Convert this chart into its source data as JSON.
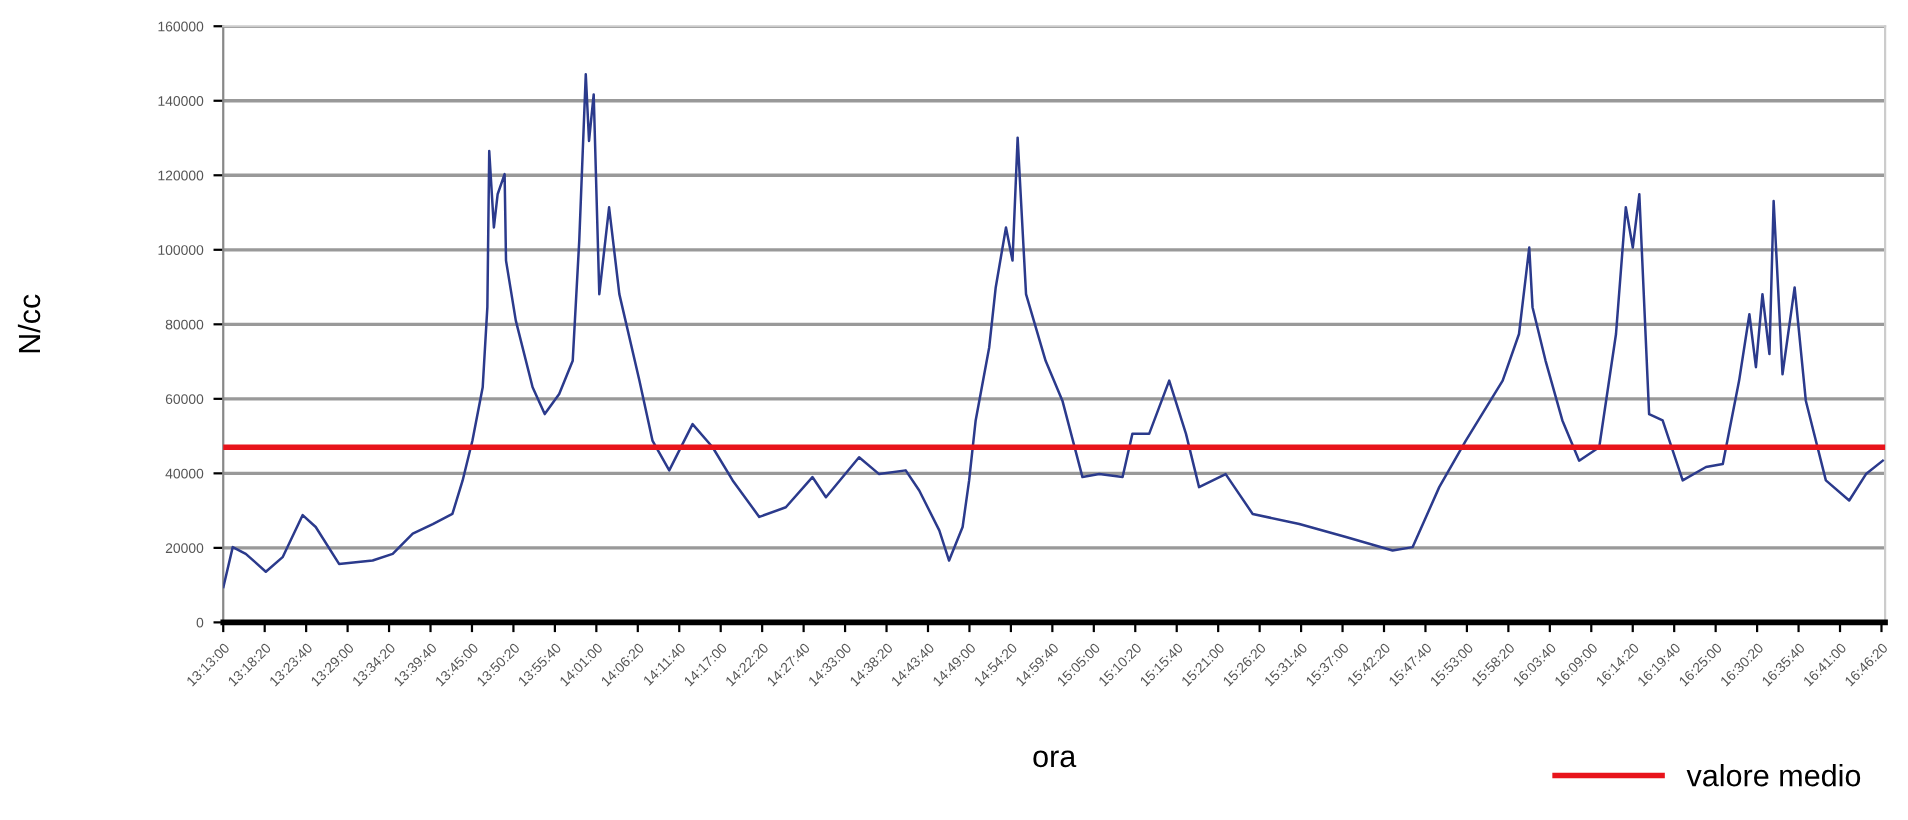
{
  "chart_data": {
    "type": "line",
    "xlabel": "ora",
    "ylabel": "N/cc",
    "x": [
      13.217,
      13.237,
      13.265,
      13.308,
      13.344,
      13.387,
      13.415,
      13.465,
      13.537,
      13.58,
      13.623,
      13.666,
      13.708,
      13.73,
      13.751,
      13.773,
      13.783,
      13.787,
      13.797,
      13.805,
      13.82,
      13.823,
      13.844,
      13.88,
      13.906,
      13.937,
      13.966,
      13.98,
      13.994,
      14.001,
      14.011,
      14.023,
      14.044,
      14.066,
      14.109,
      14.137,
      14.173,
      14.223,
      14.266,
      14.309,
      14.366,
      14.423,
      14.48,
      14.509,
      14.58,
      14.623,
      14.68,
      14.709,
      14.752,
      14.773,
      14.802,
      14.816,
      14.83,
      14.859,
      14.873,
      14.895,
      14.909,
      14.92,
      14.938,
      14.98,
      15.016,
      15.059,
      15.095,
      15.145,
      15.166,
      15.202,
      15.245,
      15.281,
      15.309,
      15.366,
      15.424,
      15.524,
      15.624,
      15.724,
      15.767,
      15.824,
      15.881,
      15.96,
      15.995,
      16.017,
      16.024,
      16.052,
      16.088,
      16.124,
      16.167,
      16.203,
      16.224,
      16.239,
      16.253,
      16.274,
      16.303,
      16.346,
      16.396,
      16.432,
      16.467,
      16.489,
      16.503,
      16.517,
      16.532,
      16.541,
      16.56,
      16.586,
      16.61,
      16.653,
      16.703,
      16.739,
      16.775
    ],
    "series": [
      {
        "color": "#2b3a8c",
        "values": [
          9500,
          20200,
          18400,
          13600,
          17500,
          28800,
          25600,
          15700,
          16600,
          18400,
          23800,
          26400,
          29100,
          38100,
          48800,
          63100,
          84600,
          126500,
          106000,
          114900,
          120300,
          97100,
          81000,
          63100,
          55900,
          61300,
          70200,
          102400,
          147100,
          129200,
          141700,
          88100,
          111400,
          88100,
          64900,
          48800,
          40800,
          53200,
          47000,
          38100,
          28300,
          30900,
          39000,
          33600,
          44300,
          39800,
          40800,
          35400,
          24700,
          16600,
          25600,
          38100,
          54200,
          73800,
          89900,
          106000,
          97100,
          130100,
          88100,
          70200,
          59500,
          39000,
          39800,
          39000,
          50600,
          50600,
          64900,
          50600,
          36300,
          39800,
          29100,
          26400,
          22900,
          19300,
          20200,
          36300,
          48800,
          64900,
          77400,
          100600,
          84600,
          70200,
          54200,
          43400,
          47000,
          77400,
          111400,
          100600,
          114900,
          55900,
          54200,
          38100,
          41700,
          42500,
          64900,
          82700,
          68500,
          88100,
          72000,
          113100,
          66600,
          89900,
          59500,
          38100,
          32700,
          39800,
          43400
        ]
      }
    ],
    "ylim": [
      0,
      160000
    ],
    "yticks": [
      0,
      20000,
      40000,
      60000,
      80000,
      100000,
      120000,
      140000,
      160000
    ],
    "xlim": [
      13.216667,
      16.78
    ],
    "xticks": [
      {
        "value": 13.216667,
        "label": "13:13:00"
      },
      {
        "value": 13.305556,
        "label": "13:18:20"
      },
      {
        "value": 13.394444,
        "label": "13:23:40"
      },
      {
        "value": 13.483333,
        "label": "13:29:00"
      },
      {
        "value": 13.572222,
        "label": "13:34:20"
      },
      {
        "value": 13.661111,
        "label": "13:39:40"
      },
      {
        "value": 13.75,
        "label": "13:45:00"
      },
      {
        "value": 13.838889,
        "label": "13:50:20"
      },
      {
        "value": 13.927778,
        "label": "13:55:40"
      },
      {
        "value": 14.016667,
        "label": "14:01:00"
      },
      {
        "value": 14.105556,
        "label": "14:06:20"
      },
      {
        "value": 14.194444,
        "label": "14:11:40"
      },
      {
        "value": 14.283333,
        "label": "14:17:00"
      },
      {
        "value": 14.372222,
        "label": "14:22:20"
      },
      {
        "value": 14.461111,
        "label": "14:27:40"
      },
      {
        "value": 14.55,
        "label": "14:33:00"
      },
      {
        "value": 14.638889,
        "label": "14:38:20"
      },
      {
        "value": 14.727778,
        "label": "14:43:40"
      },
      {
        "value": 14.816667,
        "label": "14:49:00"
      },
      {
        "value": 14.905556,
        "label": "14:54:20"
      },
      {
        "value": 14.994444,
        "label": "14:59:40"
      },
      {
        "value": 15.083333,
        "label": "15:05:00"
      },
      {
        "value": 15.172222,
        "label": "15:10:20"
      },
      {
        "value": 15.261111,
        "label": "15:15:40"
      },
      {
        "value": 15.35,
        "label": "15:21:00"
      },
      {
        "value": 15.438889,
        "label": "15:26:20"
      },
      {
        "value": 15.527778,
        "label": "15:31:40"
      },
      {
        "value": 15.616667,
        "label": "15:37:00"
      },
      {
        "value": 15.705556,
        "label": "15:42:20"
      },
      {
        "value": 15.794444,
        "label": "15:47:40"
      },
      {
        "value": 15.883333,
        "label": "15:53:00"
      },
      {
        "value": 15.972222,
        "label": "15:58:20"
      },
      {
        "value": 16.061111,
        "label": "16:03:40"
      },
      {
        "value": 16.15,
        "label": "16:09:00"
      },
      {
        "value": 16.238889,
        "label": "16:14:20"
      },
      {
        "value": 16.327778,
        "label": "16:19:40"
      },
      {
        "value": 16.416667,
        "label": "16:25:00"
      },
      {
        "value": 16.505556,
        "label": "16:30:20"
      },
      {
        "value": 16.594444,
        "label": "16:35:40"
      },
      {
        "value": 16.683333,
        "label": "16:41:00"
      },
      {
        "value": 16.772222,
        "label": "16:46:20"
      }
    ],
    "ref_lines": [
      {
        "axis": "y",
        "value": 47000,
        "label": "valore medio",
        "color": "#e8141b"
      }
    ],
    "grid": "y",
    "legend": "bottom right"
  }
}
